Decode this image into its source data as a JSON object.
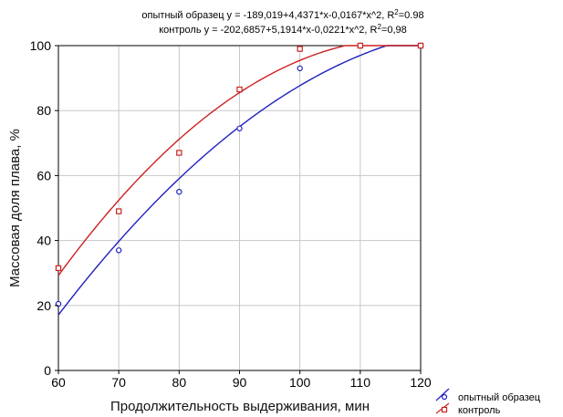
{
  "chart_data": {
    "type": "scatter",
    "equations": [
      {
        "text": "опытный образец y = -189,019+4,4371*x-0,0167*x^2, R",
        "sup": "2",
        "tail": "=0.98"
      },
      {
        "text": "контроль y = -202,6857+5,1914*x-0,0221*x^2, R",
        "sup": "2",
        "tail": "=0,98"
      }
    ],
    "xlabel": "Продолжительность выдерживания, мин",
    "ylabel": "Массовая доля плава, %",
    "xlim": [
      60,
      120
    ],
    "ylim": [
      0,
      100
    ],
    "xticks": [
      60,
      70,
      80,
      90,
      100,
      110,
      120
    ],
    "yticks": [
      0,
      20,
      40,
      60,
      80,
      100
    ],
    "grid": true,
    "legend_position": "bottom-right",
    "series": [
      {
        "name": "опытный образец",
        "color": "#1f1fbf",
        "marker": "circle",
        "x": [
          60,
          70,
          80,
          90,
          100,
          110,
          120
        ],
        "y": [
          20.5,
          37,
          55,
          74.5,
          93,
          100,
          100
        ],
        "fit": [
          -189.019,
          4.4371,
          -0.0167
        ]
      },
      {
        "name": "контроль",
        "color": "#cc2222",
        "marker": "square",
        "x": [
          60,
          70,
          80,
          90,
          100,
          110,
          120
        ],
        "y": [
          31.5,
          49,
          67,
          86.5,
          99,
          100,
          100
        ],
        "fit": [
          -202.6857,
          5.1914,
          -0.0221
        ]
      }
    ]
  }
}
